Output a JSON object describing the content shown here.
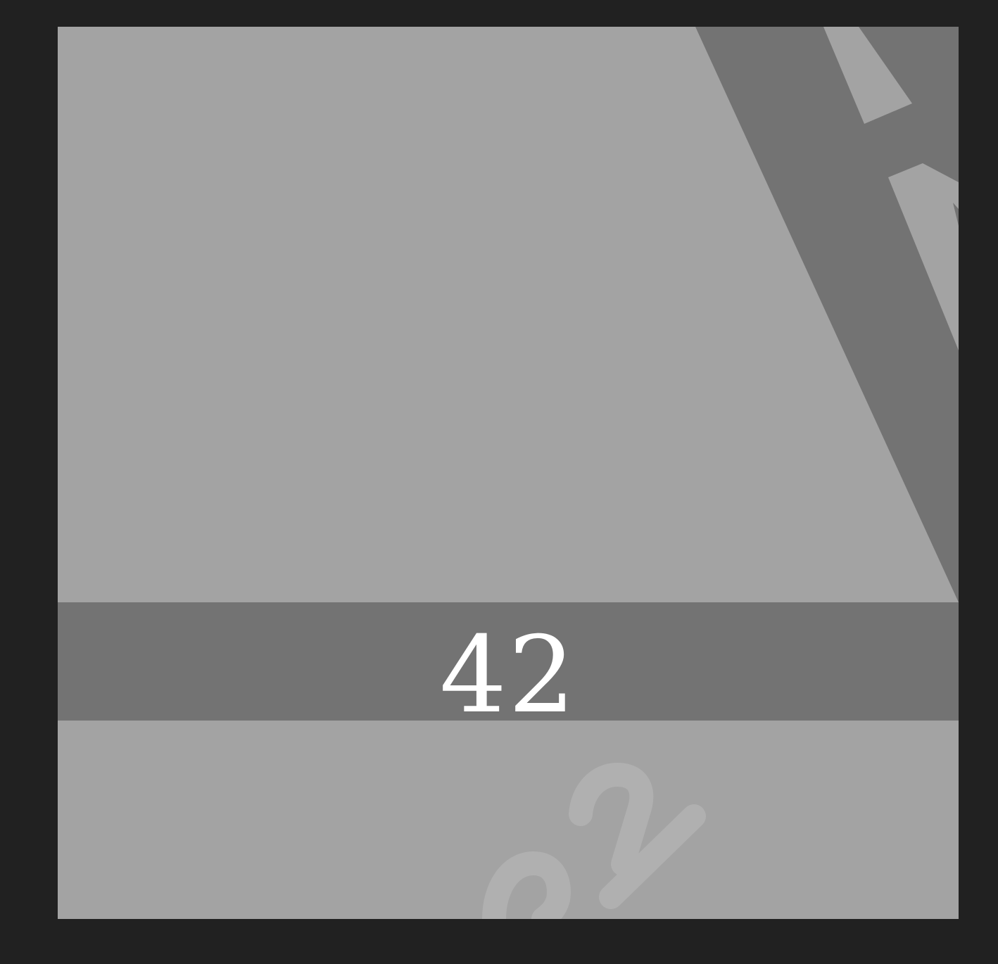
{
  "panel": {
    "banner_text": "42"
  },
  "colors": {
    "background": "#212121",
    "panel": "#a3a3a3",
    "stripe": "#737373",
    "text": "#ffffff"
  },
  "icons": {
    "background_mark": "diagonal-band-shape",
    "footer_mark": "partial-number-watermark"
  }
}
